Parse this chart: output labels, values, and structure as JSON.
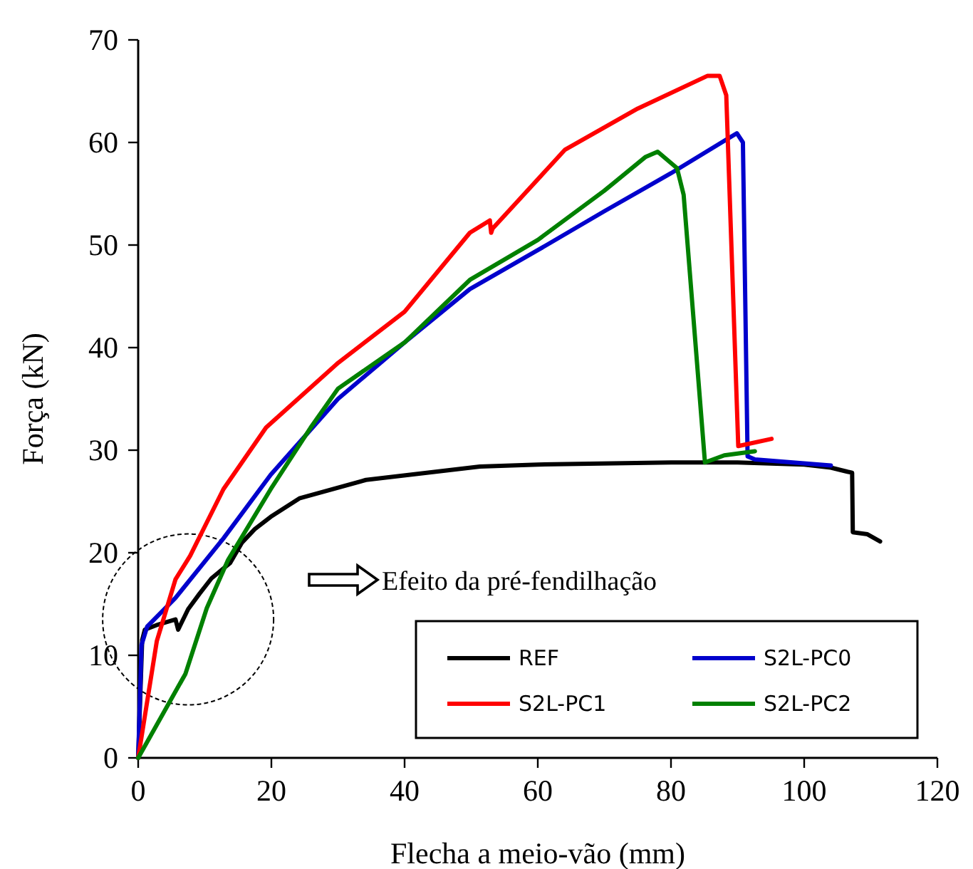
{
  "chart_data": {
    "type": "line",
    "xlabel": "Flecha a meio-vão (mm)",
    "ylabel": "Força (kN)",
    "xlim": [
      0,
      120
    ],
    "ylim": [
      0,
      70
    ],
    "xticks": [
      0,
      20,
      40,
      60,
      80,
      100,
      120
    ],
    "yticks": [
      0,
      10,
      20,
      30,
      40,
      50,
      60,
      70
    ],
    "grid": false,
    "legend": "bottom right",
    "marker": "none",
    "line_style": "solid",
    "annotations": [
      "Efeito da pré-fendilhação"
    ],
    "series": [
      {
        "name": "REF",
        "color": "#000000",
        "x": [
          0,
          0.6,
          1.0,
          3,
          5.6,
          6.0,
          7.5,
          9.2,
          11,
          13.8,
          15.6,
          17.5,
          19.9,
          24.2,
          34.2,
          51.3,
          60,
          80,
          90,
          100,
          104,
          106.5,
          107.2,
          107.3,
          109.5,
          111.4
        ],
        "values": [
          0,
          11.5,
          12.5,
          13,
          13.5,
          12.5,
          14.5,
          16,
          17.5,
          19,
          21,
          22.3,
          23.5,
          25.3,
          27.1,
          28.4,
          28.6,
          28.8,
          28.8,
          28.6,
          28.3,
          27.9,
          27.8,
          22.0,
          21.8,
          21.1
        ]
      },
      {
        "name": "S2L-PC0",
        "color": "#0000cc",
        "x": [
          0,
          0.5,
          1.35,
          5.6,
          12.8,
          19.9,
          30,
          40,
          49.8,
          60,
          70,
          80,
          89.9,
          90.8,
          91.5,
          92.6,
          104
        ],
        "values": [
          0,
          11,
          12.8,
          15.6,
          21.4,
          27.6,
          35,
          40.5,
          45.7,
          49.5,
          53.3,
          57,
          60.9,
          60,
          29.4,
          29.1,
          28.5
        ]
      },
      {
        "name": "S2L-PC1",
        "color": "#ff0000",
        "x": [
          0,
          2.8,
          5.6,
          7.8,
          12.8,
          19.2,
          30,
          40,
          49.8,
          52.8,
          53.0,
          53.2,
          64.1,
          75,
          85.5,
          87.3,
          88.3,
          90.1,
          95.1
        ],
        "values": [
          0,
          11.4,
          17.4,
          19.7,
          26.2,
          32.2,
          38.5,
          43.5,
          51.2,
          52.4,
          51.2,
          51.6,
          59.3,
          63.3,
          66.5,
          66.5,
          64.6,
          30.4,
          31.1
        ]
      },
      {
        "name": "S2L-PC2",
        "color": "#008000",
        "x": [
          0,
          7.1,
          10.3,
          13.5,
          19.9,
          25.9,
          30,
          40,
          49.8,
          60,
          70,
          76.2,
          78,
          80.9,
          81.9,
          85.1,
          88,
          92.6
        ],
        "values": [
          0,
          8.2,
          14.6,
          19.3,
          26.2,
          32.2,
          36,
          40.5,
          46.6,
          50.5,
          55.3,
          58.6,
          59.1,
          57.5,
          54.9,
          28.8,
          29.5,
          29.9
        ]
      }
    ]
  }
}
